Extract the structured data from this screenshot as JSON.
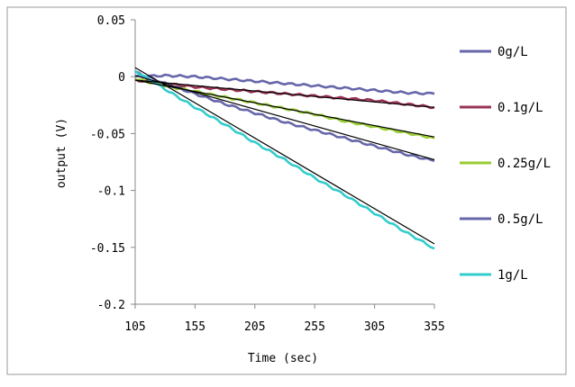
{
  "chart_data": {
    "type": "line",
    "title": "",
    "xlabel": "Time (sec)",
    "ylabel": "output (V)",
    "xlim": [
      105,
      355
    ],
    "ylim": [
      -0.2,
      0.05
    ],
    "xticks": [
      "105",
      "155",
      "205",
      "255",
      "305",
      "355"
    ],
    "yticks": [
      "0.05",
      "0",
      "-0.05",
      "-0.1",
      "-0.15",
      "-0.2"
    ],
    "x": [
      105,
      130,
      155,
      180,
      205,
      230,
      255,
      280,
      305,
      330,
      355
    ],
    "series": [
      {
        "name": "0g/L",
        "color": "#6666aa",
        "values": [
          0.0,
          0.001,
          0.0,
          -0.002,
          -0.004,
          -0.006,
          -0.008,
          -0.01,
          -0.012,
          -0.014,
          -0.015
        ]
      },
      {
        "name": "0.1g/L",
        "color": "#993355",
        "values": [
          -0.003,
          -0.006,
          -0.009,
          -0.011,
          -0.013,
          -0.015,
          -0.017,
          -0.019,
          -0.021,
          -0.024,
          -0.027
        ]
      },
      {
        "name": "0.25g/L",
        "color": "#99cc33",
        "values": [
          -0.002,
          -0.008,
          -0.013,
          -0.018,
          -0.023,
          -0.028,
          -0.033,
          -0.039,
          -0.044,
          -0.049,
          -0.054
        ]
      },
      {
        "name": "0.5g/L",
        "color": "#6666aa",
        "values": [
          0.004,
          -0.006,
          -0.015,
          -0.024,
          -0.032,
          -0.04,
          -0.047,
          -0.054,
          -0.061,
          -0.068,
          -0.074
        ]
      },
      {
        "name": "1g/L",
        "color": "#33cccc",
        "values": [
          0.005,
          -0.011,
          -0.027,
          -0.042,
          -0.058,
          -0.073,
          -0.089,
          -0.104,
          -0.12,
          -0.136,
          -0.151
        ]
      }
    ],
    "trendlines": [
      {
        "series": "0.1g/L",
        "y_start": -0.003,
        "y_end": -0.027
      },
      {
        "series": "0.25g/L",
        "y_start": -0.003,
        "y_end": -0.053
      },
      {
        "series": "0.5g/L",
        "y_start": 0.001,
        "y_end": -0.073
      },
      {
        "series": "1g/L",
        "y_start": 0.008,
        "y_end": -0.147
      }
    ],
    "trendline_color": "#000000",
    "legend_position": "right",
    "grid": false
  }
}
